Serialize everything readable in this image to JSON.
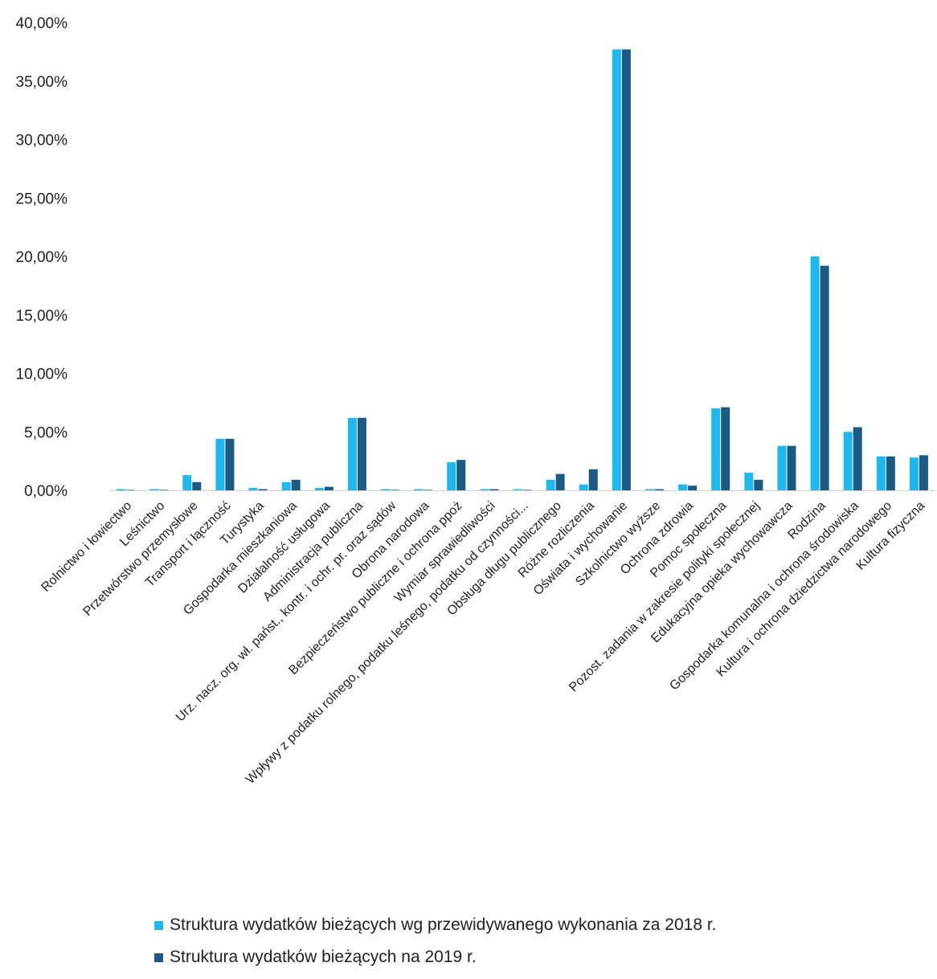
{
  "chart_data": {
    "type": "bar",
    "title": "",
    "xlabel": "",
    "ylabel": "",
    "ylim": [
      0,
      0.4
    ],
    "y_ticks": [
      {
        "value": 0.0,
        "label": "0,00%"
      },
      {
        "value": 0.05,
        "label": "5,00%"
      },
      {
        "value": 0.1,
        "label": "10,00%"
      },
      {
        "value": 0.15,
        "label": "15,00%"
      },
      {
        "value": 0.2,
        "label": "20,00%"
      },
      {
        "value": 0.25,
        "label": "25,00%"
      },
      {
        "value": 0.3,
        "label": "30,00%"
      },
      {
        "value": 0.35,
        "label": "35,00%"
      },
      {
        "value": 0.4,
        "label": "40,00%"
      }
    ],
    "grid": false,
    "legend_position": "bottom",
    "categories": [
      "Rolnictwo i łowiectwo",
      "Leśnictwo",
      "Przetwórstwo przemysłowe",
      "Transport i łączność",
      "Turystyka",
      "Gospodarka mieszkaniowa",
      "Działalność usługowa",
      "Administracja publiczna",
      "Urz. nacz. org. wł. państ., kontr. i ochr. pr. oraz sądów",
      "Obrona narodowa",
      "Bezpieczeństwo publiczne i ochrona ppoż",
      "Wymiar sprawiedliwości",
      "Wpływy z podatku rolnego, podatku leśnego, podatku od czynności...",
      "Obsługa długu publicznego",
      "Różne rozliczenia",
      "Oświata i wychowanie",
      "Szkolnictwo wyższe",
      "Ochrona zdrowia",
      "Pomoc społeczna",
      "Pozost. zadania w zakresie polityki społecznej",
      "Edukacyjna opieka wychowawcza",
      "Rodzina",
      "Gospodarka komunalna i ochrona środowiska",
      "Kultura i ochrona dziedzictwa narodowego",
      "Kultura fizyczna"
    ],
    "series": [
      {
        "name": "Struktura wydatków bieżących wg przewidywanego wykonania za 2018 r.",
        "color": "#1fb8ee",
        "values": [
          0.001,
          0.001,
          0.013,
          0.044,
          0.002,
          0.007,
          0.002,
          0.062,
          0.001,
          0.001,
          0.024,
          0.001,
          0.001,
          0.009,
          0.005,
          0.377,
          0.001,
          0.005,
          0.07,
          0.015,
          0.038,
          0.2,
          0.05,
          0.029,
          0.028
        ]
      },
      {
        "name": "Struktura wydatków bieżących na 2019 r.",
        "color": "#1c5a86",
        "values": [
          0.0,
          0.0,
          0.007,
          0.044,
          0.001,
          0.009,
          0.003,
          0.062,
          0.0,
          0.0,
          0.026,
          0.001,
          0.0,
          0.014,
          0.018,
          0.377,
          0.001,
          0.004,
          0.071,
          0.009,
          0.038,
          0.192,
          0.054,
          0.029,
          0.03
        ]
      }
    ]
  }
}
